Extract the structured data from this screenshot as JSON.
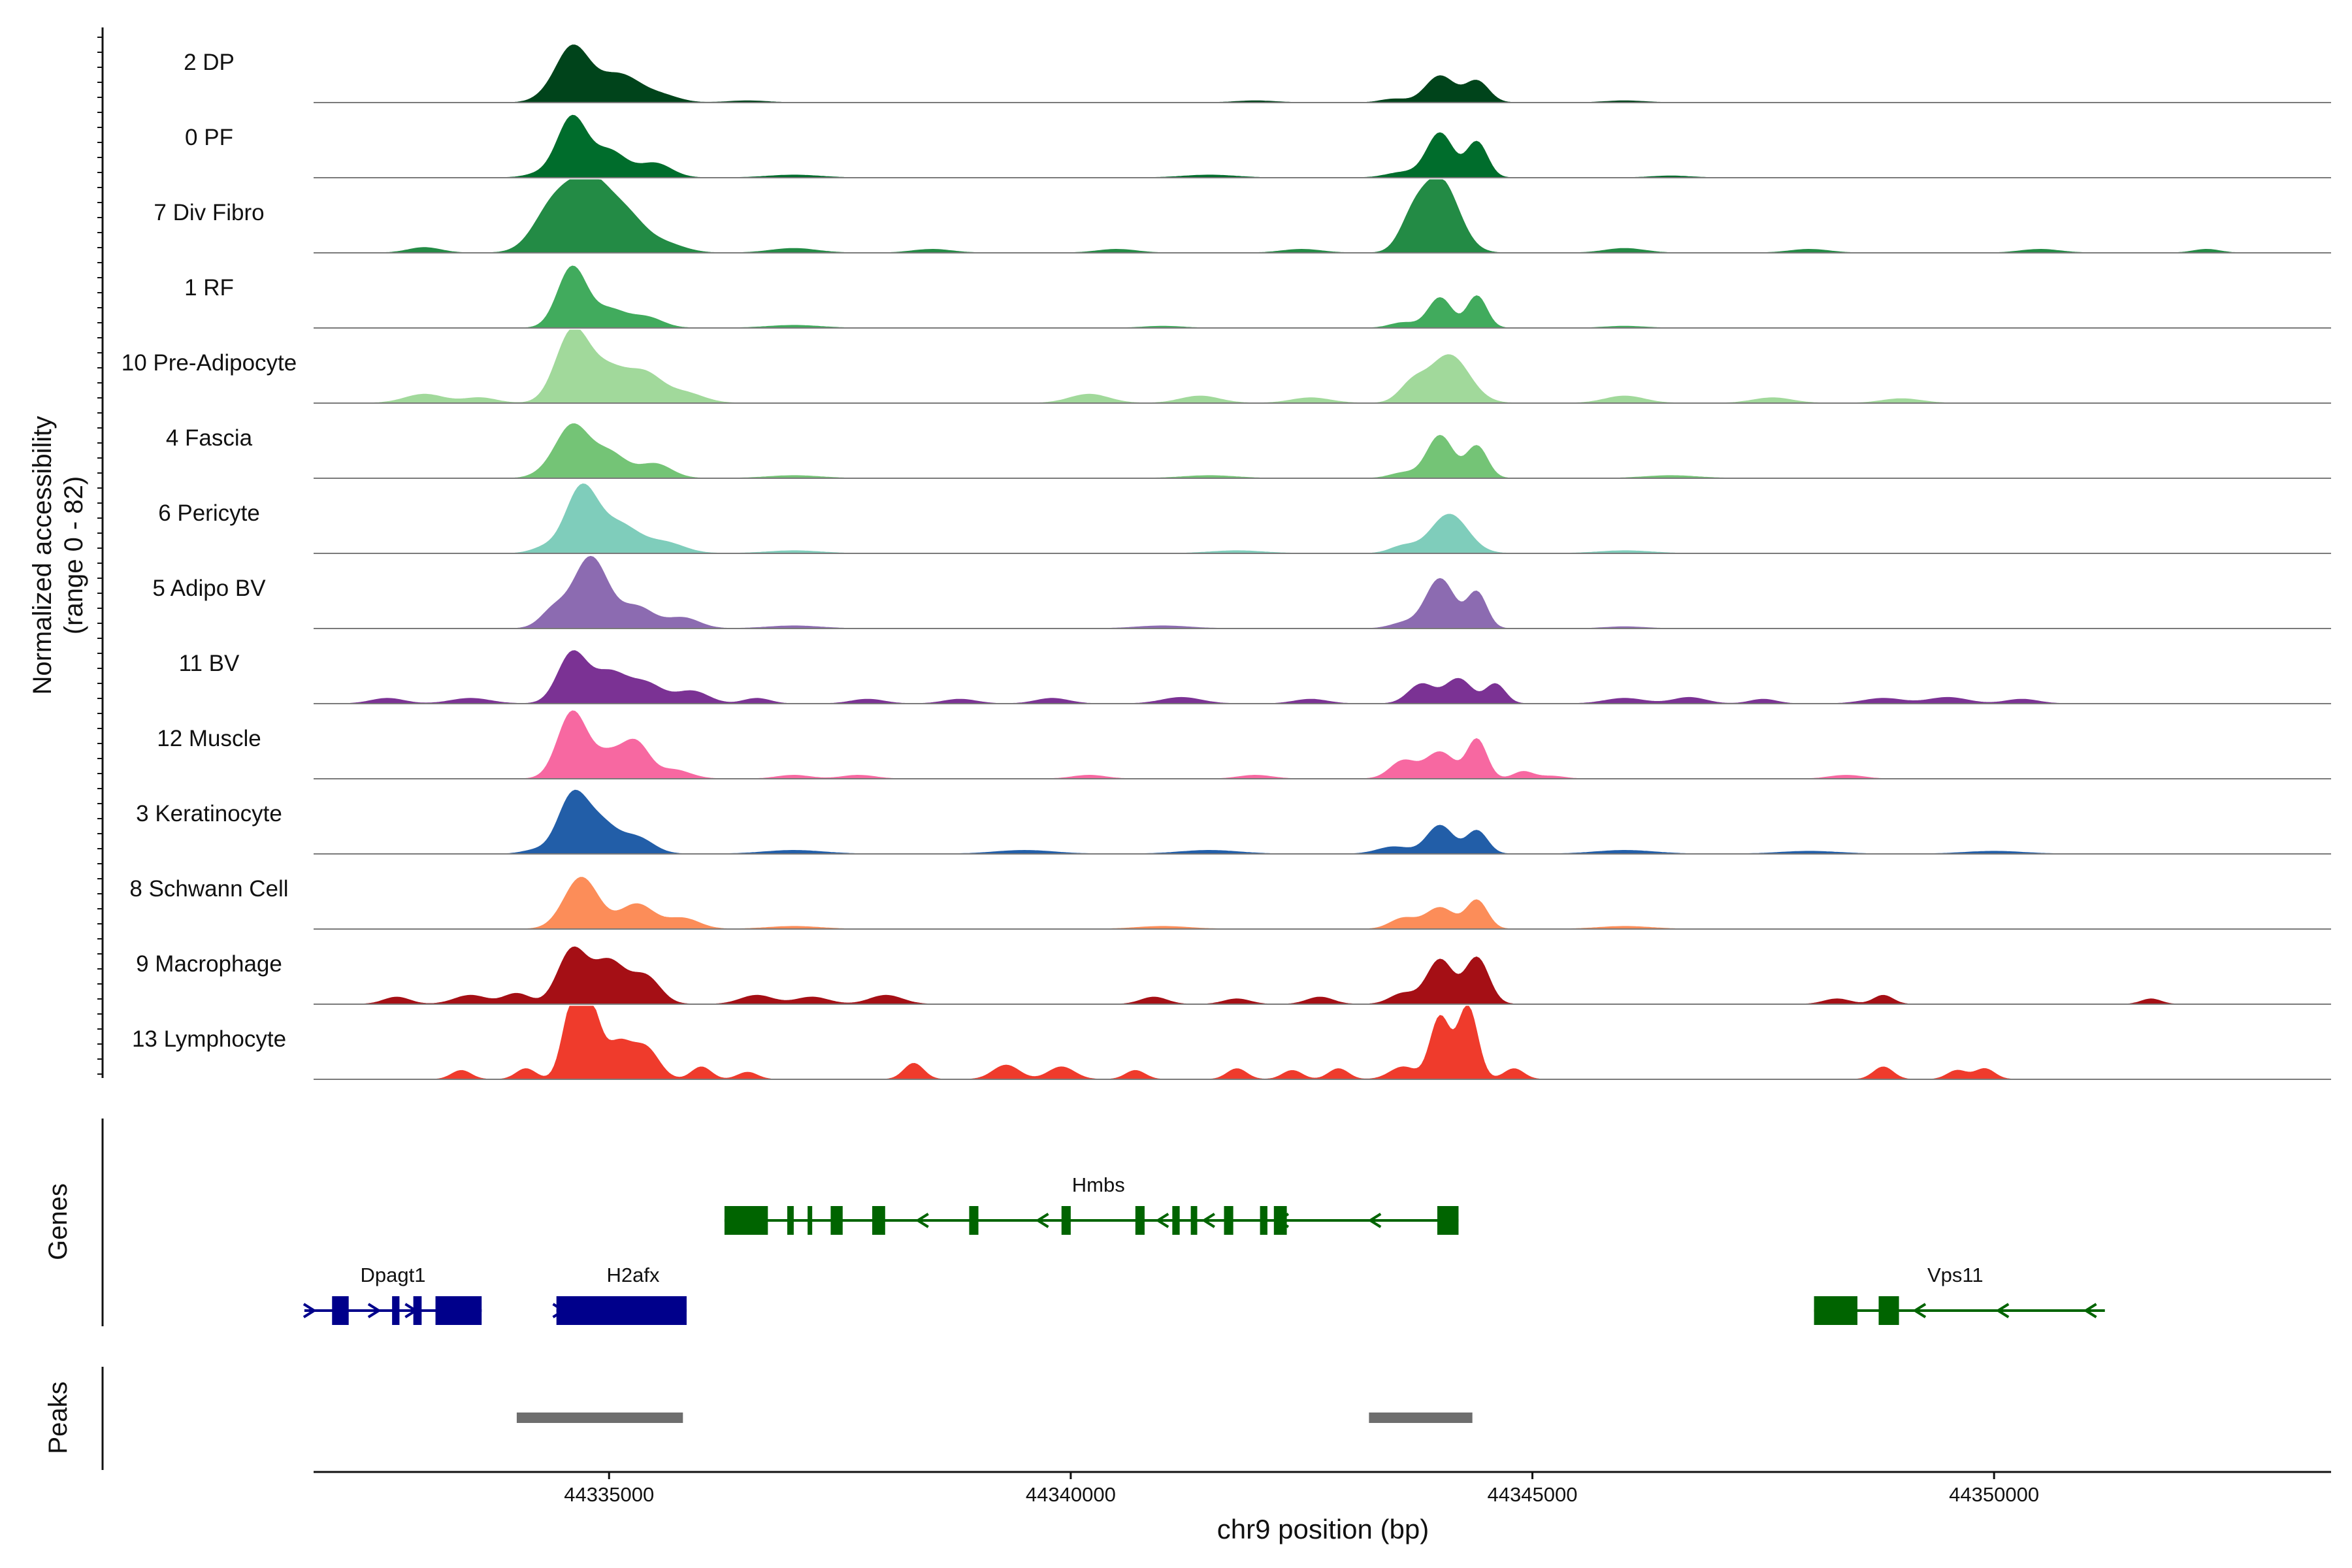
{
  "chart_data": {
    "type": "area",
    "title": "",
    "region": {
      "chrom": "chr9",
      "start": 44331800,
      "end": 44353650
    },
    "xlabel": "chr9 position (bp)",
    "ylabel_line1": "Normalized accessibility",
    "ylabel_line2": "(range 0 - 82)",
    "ylim": [
      0,
      82
    ],
    "x_ticks": [
      44335000,
      44340000,
      44345000,
      44350000
    ],
    "x_tick_labels": [
      "44335000",
      "44340000",
      "44345000",
      "44350000"
    ],
    "genes_label": "Genes",
    "peaks_label": "Peaks",
    "tracks": [
      {
        "name": "2 DP",
        "color": "#00441b",
        "peaks": [
          [
            44334600,
            60,
            250
          ],
          [
            44335100,
            32,
            350
          ],
          [
            44335600,
            6,
            250
          ],
          [
            44334300,
            4,
            200
          ],
          [
            44344000,
            30,
            220
          ],
          [
            44344400,
            24,
            180
          ],
          [
            44343500,
            4,
            200
          ],
          [
            44336500,
            2,
            300
          ],
          [
            44342000,
            2,
            300
          ],
          [
            44346000,
            2,
            300
          ]
        ]
      },
      {
        "name": "0 PF",
        "color": "#006d2c",
        "peaks": [
          [
            44334600,
            66,
            220
          ],
          [
            44335000,
            30,
            260
          ],
          [
            44335500,
            16,
            250
          ],
          [
            44334300,
            5,
            250
          ],
          [
            44344000,
            50,
            200
          ],
          [
            44344400,
            40,
            160
          ],
          [
            44343600,
            6,
            250
          ],
          [
            44337000,
            3,
            400
          ],
          [
            44341500,
            3,
            400
          ],
          [
            44346500,
            2,
            300
          ]
        ]
      },
      {
        "name": "7 Div Fibro",
        "color": "#238b45",
        "peaks": [
          [
            44334400,
            50,
            300
          ],
          [
            44334800,
            76,
            320
          ],
          [
            44335200,
            34,
            280
          ],
          [
            44335600,
            10,
            300
          ],
          [
            44344000,
            82,
            280
          ],
          [
            44343700,
            30,
            200
          ],
          [
            44333000,
            6,
            250
          ],
          [
            44337000,
            5,
            350
          ],
          [
            44338500,
            4,
            300
          ],
          [
            44340500,
            4,
            300
          ],
          [
            44342500,
            4,
            300
          ],
          [
            44346000,
            5,
            300
          ],
          [
            44348000,
            4,
            300
          ],
          [
            44350500,
            4,
            300
          ],
          [
            44352300,
            4,
            200
          ]
        ]
      },
      {
        "name": "1 RF",
        "color": "#41ab5d",
        "peaks": [
          [
            44334600,
            68,
            220
          ],
          [
            44335000,
            20,
            250
          ],
          [
            44335400,
            12,
            250
          ],
          [
            44344000,
            34,
            180
          ],
          [
            44344400,
            36,
            150
          ],
          [
            44343600,
            6,
            200
          ],
          [
            44337000,
            3,
            400
          ],
          [
            44341000,
            2,
            300
          ],
          [
            44346000,
            2,
            300
          ]
        ]
      },
      {
        "name": "10 Pre-Adipocyte",
        "color": "#a1d99b",
        "peaks": [
          [
            44334600,
            78,
            250
          ],
          [
            44335000,
            38,
            300
          ],
          [
            44335400,
            28,
            250
          ],
          [
            44335800,
            12,
            300
          ],
          [
            44344100,
            54,
            300
          ],
          [
            44343700,
            20,
            200
          ],
          [
            44333000,
            10,
            300
          ],
          [
            44333600,
            6,
            250
          ],
          [
            44340200,
            10,
            300
          ],
          [
            44341400,
            8,
            300
          ],
          [
            44342600,
            6,
            300
          ],
          [
            44346000,
            8,
            300
          ],
          [
            44347600,
            6,
            300
          ],
          [
            44349000,
            5,
            300
          ]
        ]
      },
      {
        "name": "4 Fascia",
        "color": "#74c476",
        "peaks": [
          [
            44334600,
            58,
            250
          ],
          [
            44335000,
            28,
            260
          ],
          [
            44335500,
            16,
            250
          ],
          [
            44334300,
            4,
            200
          ],
          [
            44344000,
            48,
            200
          ],
          [
            44344400,
            36,
            160
          ],
          [
            44343600,
            6,
            200
          ],
          [
            44337000,
            3,
            400
          ],
          [
            44341500,
            3,
            400
          ],
          [
            44346500,
            3,
            400
          ]
        ]
      },
      {
        "name": "6 Pericyte",
        "color": "#7fcdbb",
        "peaks": [
          [
            44334700,
            72,
            240
          ],
          [
            44335100,
            32,
            300
          ],
          [
            44335600,
            12,
            300
          ],
          [
            44334300,
            6,
            200
          ],
          [
            44344100,
            44,
            280
          ],
          [
            44343600,
            8,
            200
          ],
          [
            44337000,
            3,
            400
          ],
          [
            44341800,
            3,
            400
          ],
          [
            44346000,
            3,
            400
          ]
        ]
      },
      {
        "name": "5 Adipo BV",
        "color": "#8c6bb1",
        "peaks": [
          [
            44334800,
            80,
            260
          ],
          [
            44334400,
            20,
            200
          ],
          [
            44335300,
            24,
            260
          ],
          [
            44335800,
            12,
            250
          ],
          [
            44344000,
            56,
            220
          ],
          [
            44344400,
            40,
            150
          ],
          [
            44343600,
            6,
            200
          ],
          [
            44337000,
            3,
            400
          ],
          [
            44341000,
            3,
            400
          ],
          [
            44346000,
            2,
            300
          ]
        ]
      },
      {
        "name": "11 BV",
        "color": "#7b3294",
        "peaks": [
          [
            44334600,
            56,
            220
          ],
          [
            44335000,
            34,
            260
          ],
          [
            44335400,
            22,
            260
          ],
          [
            44335900,
            14,
            250
          ],
          [
            44343800,
            22,
            200
          ],
          [
            44344200,
            28,
            200
          ],
          [
            44344600,
            22,
            150
          ],
          [
            44332600,
            6,
            250
          ],
          [
            44333500,
            6,
            300
          ],
          [
            44336600,
            6,
            200
          ],
          [
            44337800,
            5,
            250
          ],
          [
            44338800,
            5,
            250
          ],
          [
            44339800,
            6,
            250
          ],
          [
            44341200,
            7,
            300
          ],
          [
            44342600,
            5,
            250
          ],
          [
            44346000,
            6,
            300
          ],
          [
            44346700,
            7,
            250
          ],
          [
            44347500,
            5,
            200
          ],
          [
            44348800,
            6,
            300
          ],
          [
            44349500,
            7,
            300
          ],
          [
            44350300,
            5,
            250
          ]
        ]
      },
      {
        "name": "12 Muscle",
        "color": "#f768a1",
        "peaks": [
          [
            44334600,
            74,
            220
          ],
          [
            44335000,
            28,
            250
          ],
          [
            44335300,
            36,
            200
          ],
          [
            44335700,
            10,
            250
          ],
          [
            44344000,
            30,
            220
          ],
          [
            44344400,
            44,
            150
          ],
          [
            44343600,
            20,
            200
          ],
          [
            44344900,
            8,
            150
          ],
          [
            44337000,
            4,
            250
          ],
          [
            44337700,
            4,
            250
          ],
          [
            44340200,
            4,
            250
          ],
          [
            44342000,
            4,
            250
          ],
          [
            44345200,
            3,
            200
          ],
          [
            44348400,
            4,
            250
          ]
        ]
      },
      {
        "name": "3 Keratinocyte",
        "color": "#225ea8",
        "peaks": [
          [
            44334600,
            62,
            220
          ],
          [
            44334900,
            34,
            250
          ],
          [
            44335300,
            18,
            250
          ],
          [
            44334200,
            4,
            200
          ],
          [
            44344000,
            32,
            200
          ],
          [
            44344400,
            26,
            160
          ],
          [
            44343500,
            8,
            250
          ],
          [
            44337000,
            4,
            450
          ],
          [
            44339500,
            4,
            450
          ],
          [
            44341500,
            4,
            450
          ],
          [
            44346000,
            4,
            450
          ],
          [
            44348000,
            3,
            450
          ],
          [
            44350000,
            3,
            450
          ]
        ]
      },
      {
        "name": "8 Schwann Cell",
        "color": "#fc8d59",
        "peaks": [
          [
            44334700,
            58,
            260
          ],
          [
            44335300,
            28,
            260
          ],
          [
            44335800,
            12,
            250
          ],
          [
            44344000,
            24,
            220
          ],
          [
            44344400,
            32,
            160
          ],
          [
            44343600,
            12,
            200
          ],
          [
            44337000,
            3,
            400
          ],
          [
            44341000,
            3,
            400
          ],
          [
            44346000,
            3,
            400
          ]
        ]
      },
      {
        "name": "9 Macrophage",
        "color": "#a50f15",
        "peaks": [
          [
            44334600,
            60,
            220
          ],
          [
            44335000,
            48,
            250
          ],
          [
            44335400,
            30,
            220
          ],
          [
            44344000,
            50,
            200
          ],
          [
            44344400,
            52,
            180
          ],
          [
            44343600,
            12,
            200
          ],
          [
            44332700,
            8,
            200
          ],
          [
            44333500,
            10,
            250
          ],
          [
            44334000,
            12,
            200
          ],
          [
            44336600,
            10,
            250
          ],
          [
            44337200,
            8,
            250
          ],
          [
            44338000,
            10,
            250
          ],
          [
            44340900,
            8,
            200
          ],
          [
            44341800,
            6,
            200
          ],
          [
            44342700,
            8,
            200
          ],
          [
            44348300,
            6,
            200
          ],
          [
            44348800,
            10,
            150
          ],
          [
            44351700,
            6,
            150
          ]
        ]
      },
      {
        "name": "13 Lymphocyte",
        "color": "#ef3b2c",
        "peaks": [
          [
            44334600,
            80,
            150
          ],
          [
            44334800,
            74,
            150
          ],
          [
            44335100,
            40,
            200
          ],
          [
            44335400,
            34,
            200
          ],
          [
            44344000,
            70,
            150
          ],
          [
            44344300,
            82,
            150
          ],
          [
            44343600,
            14,
            200
          ],
          [
            44344800,
            12,
            150
          ],
          [
            44333400,
            10,
            150
          ],
          [
            44334100,
            12,
            150
          ],
          [
            44336000,
            14,
            150
          ],
          [
            44336500,
            8,
            150
          ],
          [
            44338300,
            18,
            150
          ],
          [
            44339300,
            16,
            200
          ],
          [
            44339900,
            14,
            200
          ],
          [
            44340700,
            10,
            150
          ],
          [
            44341800,
            12,
            150
          ],
          [
            44342400,
            10,
            150
          ],
          [
            44342900,
            12,
            150
          ],
          [
            44348800,
            14,
            150
          ],
          [
            44349600,
            10,
            150
          ],
          [
            44349900,
            12,
            150
          ]
        ]
      }
    ],
    "genes": [
      {
        "name": "Hmbs",
        "color": "#006400",
        "row": 0,
        "strand": "-",
        "start": 44336250,
        "end": 44344200,
        "label_x": 44340300,
        "exons": [
          [
            44336250,
            44336720
          ],
          [
            44336930,
            44337000
          ],
          [
            44337150,
            44337200
          ],
          [
            44337400,
            44337530
          ],
          [
            44337850,
            44337990
          ],
          [
            44338900,
            44339000
          ],
          [
            44339900,
            44340000
          ],
          [
            44340700,
            44340800
          ],
          [
            44341100,
            44341180
          ],
          [
            44341300,
            44341370
          ],
          [
            44341660,
            44341760
          ],
          [
            44342050,
            44342130
          ],
          [
            44342200,
            44342340
          ],
          [
            44343970,
            44344200
          ]
        ],
        "arrows": [
          44338400,
          44339700,
          44341000,
          44341500,
          44342300,
          44343300
        ]
      },
      {
        "name": "Dpagt1",
        "color": "#00008b",
        "row": 1,
        "strand": "+",
        "start": 44332750,
        "end": 44333620,
        "label_x": 44332660,
        "exons": [
          [
            44332000,
            44332180
          ],
          [
            44332650,
            44332730
          ],
          [
            44332880,
            44332970
          ],
          [
            44333120,
            44333620
          ]
        ],
        "line_start": 44331700,
        "arrows": [
          44331750,
          44332450,
          44332850
        ]
      },
      {
        "name": "H2afx",
        "color": "#00008b",
        "row": 1,
        "strand": "+",
        "start": 44334430,
        "end": 44335840,
        "label_x": 44335260,
        "exons": [
          [
            44334430,
            44335840
          ]
        ],
        "line_start": 44334430,
        "arrows": [
          44334450
        ]
      },
      {
        "name": "Vps11",
        "color": "#006400",
        "row": 1,
        "strand": "-",
        "start": 44348050,
        "end": 44351200,
        "label_x": 44349580,
        "exons": [
          [
            44348050,
            44348520
          ],
          [
            44348750,
            44348970
          ]
        ],
        "arrows": [
          44349200,
          44350100,
          44351050
        ]
      }
    ],
    "peak_regions": [
      [
        44334000,
        44335800
      ],
      [
        44343230,
        44344350
      ]
    ]
  }
}
